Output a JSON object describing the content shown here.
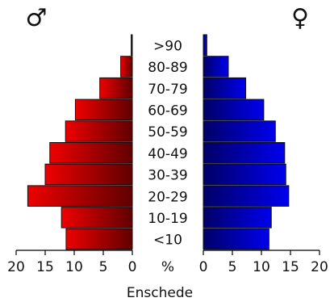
{
  "chart_data": {
    "type": "bar",
    "title": "Enschede",
    "male_symbol": "♂",
    "female_symbol": "♀",
    "categories": [
      ">90",
      "80-89",
      "70-79",
      "60-69",
      "50-59",
      "40-49",
      "30-39",
      "20-29",
      "10-19",
      "<10"
    ],
    "series": [
      {
        "name": "♂",
        "values": [
          0.2,
          2.0,
          5.6,
          9.8,
          11.5,
          14.2,
          15.0,
          18.0,
          12.2,
          11.4
        ]
      },
      {
        "name": "♀",
        "values": [
          0.6,
          4.3,
          7.3,
          10.4,
          12.4,
          14.0,
          14.2,
          14.7,
          11.7,
          11.3
        ]
      }
    ],
    "x_ticks": [
      "20",
      "15",
      "10",
      "5",
      "0",
      "%",
      "0",
      "5",
      "10",
      "15",
      "20"
    ],
    "xlim": [
      0,
      20
    ],
    "colors": {
      "male": "#ee0000",
      "male_dark": "#600000",
      "female": "#0000ee",
      "female_dark": "#000066"
    }
  }
}
